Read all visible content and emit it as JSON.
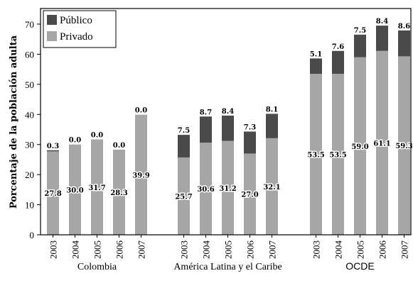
{
  "chart_data": {
    "type": "bar",
    "stacked": true,
    "ylabel": "Porcentaje de la población adulta",
    "ylim": [
      0,
      70
    ],
    "yticks": [
      "0",
      "10",
      "20",
      "30",
      "40",
      "50",
      "60",
      "70"
    ],
    "legend_position": "top-left",
    "groups": [
      {
        "name": "Colombia",
        "categories": [
          "2003",
          "2004",
          "2005",
          "2006",
          "2007"
        ],
        "privado": [
          27.8,
          30.0,
          31.7,
          28.3,
          39.9
        ],
        "publico": [
          0.3,
          0.0,
          0.0,
          0.0,
          0.0
        ],
        "privado_labels": [
          "27.8",
          "30.0",
          "31.7",
          "28.3",
          "39.9"
        ],
        "publico_labels": [
          "0.3",
          "0.0",
          "0.0",
          "0.0",
          "0.0"
        ]
      },
      {
        "name": "América Latina y el Caribe",
        "categories": [
          "2003",
          "2004",
          "2005",
          "2006",
          "2007"
        ],
        "privado": [
          25.7,
          30.6,
          31.2,
          27.0,
          32.1
        ],
        "publico": [
          7.5,
          8.7,
          8.4,
          7.3,
          8.1
        ],
        "privado_labels": [
          "25.7",
          "30.6",
          "31.2",
          "27.0",
          "32.1"
        ],
        "publico_labels": [
          "7.5",
          "8.7",
          "8.4",
          "7.3",
          "8.1"
        ]
      },
      {
        "name": "OCDE",
        "categories": [
          "2003",
          "2004",
          "2005",
          "2006",
          "2007"
        ],
        "privado": [
          53.5,
          53.5,
          59.0,
          61.1,
          59.3
        ],
        "publico": [
          5.1,
          7.6,
          7.5,
          8.4,
          8.6
        ],
        "privado_labels": [
          "53.5",
          "53.5",
          "59.0",
          "61.1",
          "59.3"
        ],
        "publico_labels": [
          "5.1",
          "7.6",
          "7.5",
          "8.4",
          "8.6"
        ]
      }
    ],
    "series": [
      {
        "name": "Público",
        "key": "publico",
        "color": "#4a4a4a"
      },
      {
        "name": "Privado",
        "key": "privado",
        "color": "#a6a6a6"
      }
    ]
  }
}
